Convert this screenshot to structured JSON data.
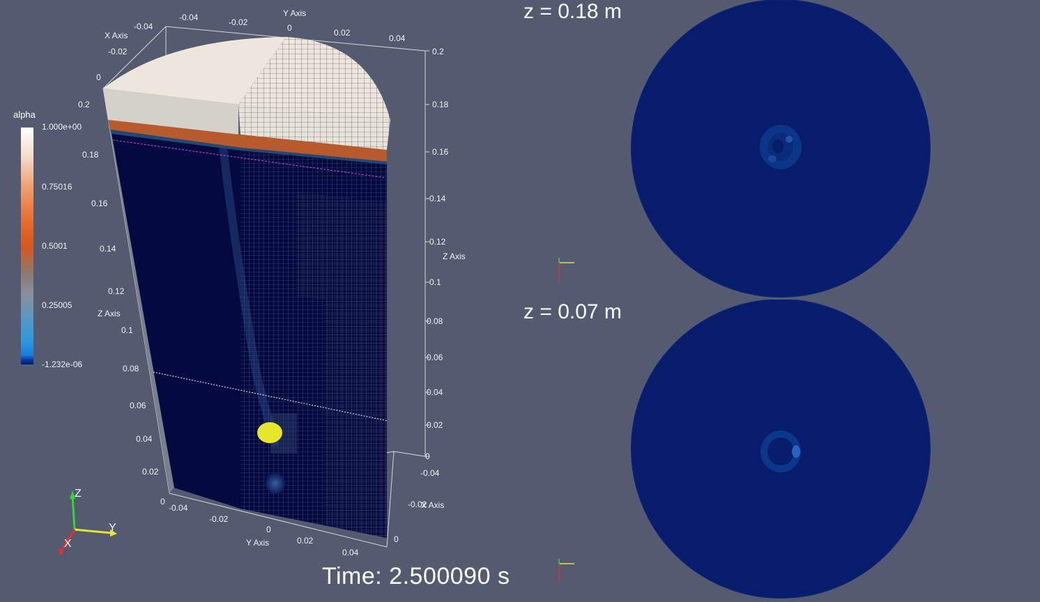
{
  "colorbar": {
    "title": "alpha",
    "ticks": [
      "1.000e+00",
      "0.75016",
      "0.5001",
      "0.25005",
      "-1.232e-06"
    ]
  },
  "axes": {
    "x_title": "X Axis",
    "y_title": "Y Axis",
    "z_title": "Z Axis",
    "top_y_ticks": [
      "-0.04",
      "-0.02",
      "0",
      "0.02",
      "0.04"
    ],
    "top_x_ticks": [
      "-0.04",
      "-0.02",
      "0"
    ],
    "right_z_ticks": [
      "0.2",
      "0.18",
      "0.16",
      "0.14",
      "0.12",
      "0.1",
      "0.08",
      "0.06",
      "0.04",
      "0.02",
      "0"
    ],
    "left_z_ticks": [
      "0.2",
      "0.18",
      "0.16",
      "0.14",
      "0.12",
      "0.1",
      "0.08",
      "0.06",
      "0.04",
      "0.02",
      "0"
    ],
    "bottom_y_ticks": [
      "-0.04",
      "-0.02",
      "0",
      "0.02",
      "0.04"
    ],
    "right_x_ticks": [
      "-0.04",
      "-0.02",
      "0"
    ]
  },
  "orientation_triad": {
    "x": "X",
    "y": "Y",
    "z": "Z"
  },
  "slices": [
    {
      "label": "z = 0.18 m"
    },
    {
      "label": "z = 0.07 m"
    }
  ],
  "time_label": "Time: 2.500090 s",
  "colors": {
    "background": "#545a70",
    "fluid": "#04093f",
    "slice_fill": "#071c6b",
    "interface": "#b75a2c",
    "air": "#ece6dc",
    "particle": "#e6e62a"
  }
}
